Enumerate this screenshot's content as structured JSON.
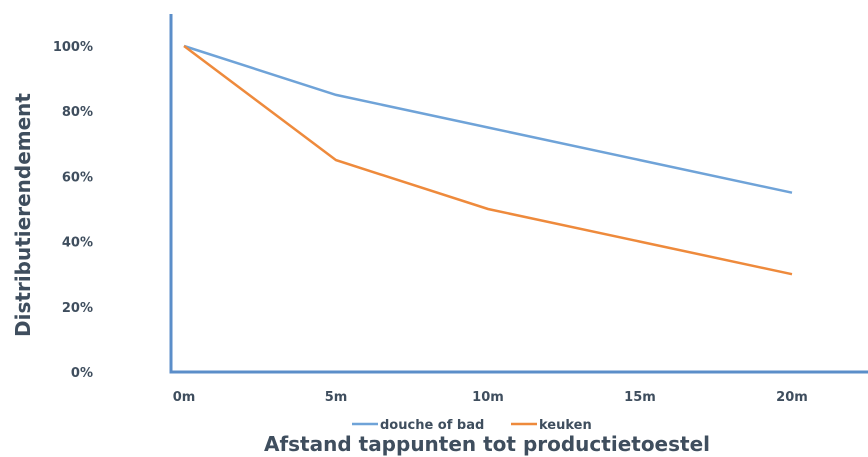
{
  "chart_data": {
    "type": "line",
    "title": "",
    "xlabel": "Afstand tappunten tot productietoestel",
    "ylabel": "Distributierendement",
    "categories": [
      "0m",
      "5m",
      "10m",
      "15m",
      "20m"
    ],
    "y_ticks": [
      "0%",
      "20%",
      "40%",
      "60%",
      "80%",
      "100%"
    ],
    "ylim": [
      0,
      100
    ],
    "grid": false,
    "legend_position": "bottom",
    "series": [
      {
        "name": "douche of bad",
        "values": [
          100,
          85,
          75,
          65,
          55
        ],
        "color": "#6fa3d8"
      },
      {
        "name": "keuken",
        "values": [
          100,
          65,
          50,
          40,
          30
        ],
        "color": "#ee8a3c"
      }
    ],
    "axis_color": "#5b8ec9",
    "text_color": "#3f4e5e"
  }
}
